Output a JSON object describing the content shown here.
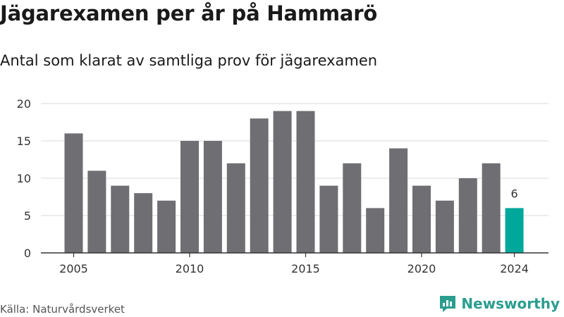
{
  "header": {
    "title": "Jägarexamen per år på Hammarö",
    "subtitle": "Antal som klarat av samtliga prov för jägarexamen"
  },
  "footer": {
    "source": "Källa: Naturvårdsverket",
    "brand": "Newsworthy",
    "brand_icon": "bar-chart-logo-icon"
  },
  "colors": {
    "bar": "#6e6e73",
    "highlight": "#00a89c",
    "grid": "#d9d9d9",
    "axis": "#333333",
    "brand": "#2a9d8f"
  },
  "chart_data": {
    "type": "bar",
    "title": "Jägarexamen per år på Hammarö",
    "subtitle": "Antal som klarat av samtliga prov för jägarexamen",
    "xlabel": "",
    "ylabel": "",
    "categories": [
      2005,
      2006,
      2007,
      2008,
      2009,
      2010,
      2011,
      2012,
      2013,
      2014,
      2015,
      2016,
      2017,
      2018,
      2019,
      2020,
      2021,
      2022,
      2023,
      2024
    ],
    "values": [
      16,
      11,
      9,
      8,
      7,
      15,
      15,
      12,
      18,
      19,
      19,
      9,
      12,
      6,
      14,
      9,
      7,
      10,
      12,
      6
    ],
    "x_ticks": [
      2005,
      2010,
      2015,
      2020,
      2024
    ],
    "y_ticks": [
      0,
      5,
      10,
      15,
      20
    ],
    "ylim": [
      0,
      20
    ],
    "grid": true,
    "highlight": {
      "category": 2024,
      "label": "6"
    }
  }
}
